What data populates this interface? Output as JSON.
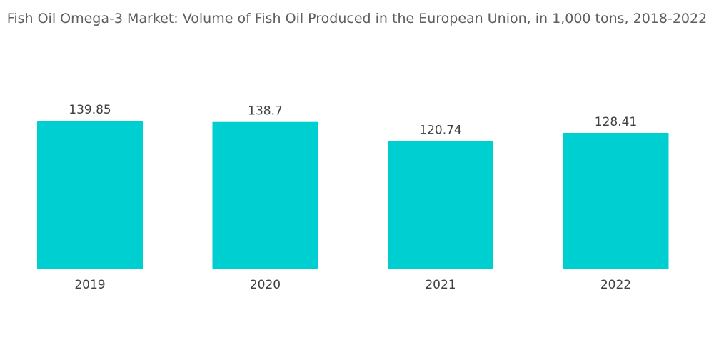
{
  "chart_data": {
    "type": "bar",
    "title": "Fish Oil Omega-3 Market: Volume of Fish Oil Produced in the European Union, in 1,000 tons, 2018-2022",
    "categories": [
      "2019",
      "2020",
      "2021",
      "2022"
    ],
    "values": [
      139.85,
      138.7,
      120.74,
      128.41
    ],
    "value_labels": [
      "139.85",
      "138.7",
      "120.74",
      "128.41"
    ],
    "xlabel": "",
    "ylabel": "",
    "ylim": [
      0,
      139.85
    ],
    "grid": false,
    "legend": "none",
    "colors": {
      "bar": "#00cfd2"
    }
  }
}
